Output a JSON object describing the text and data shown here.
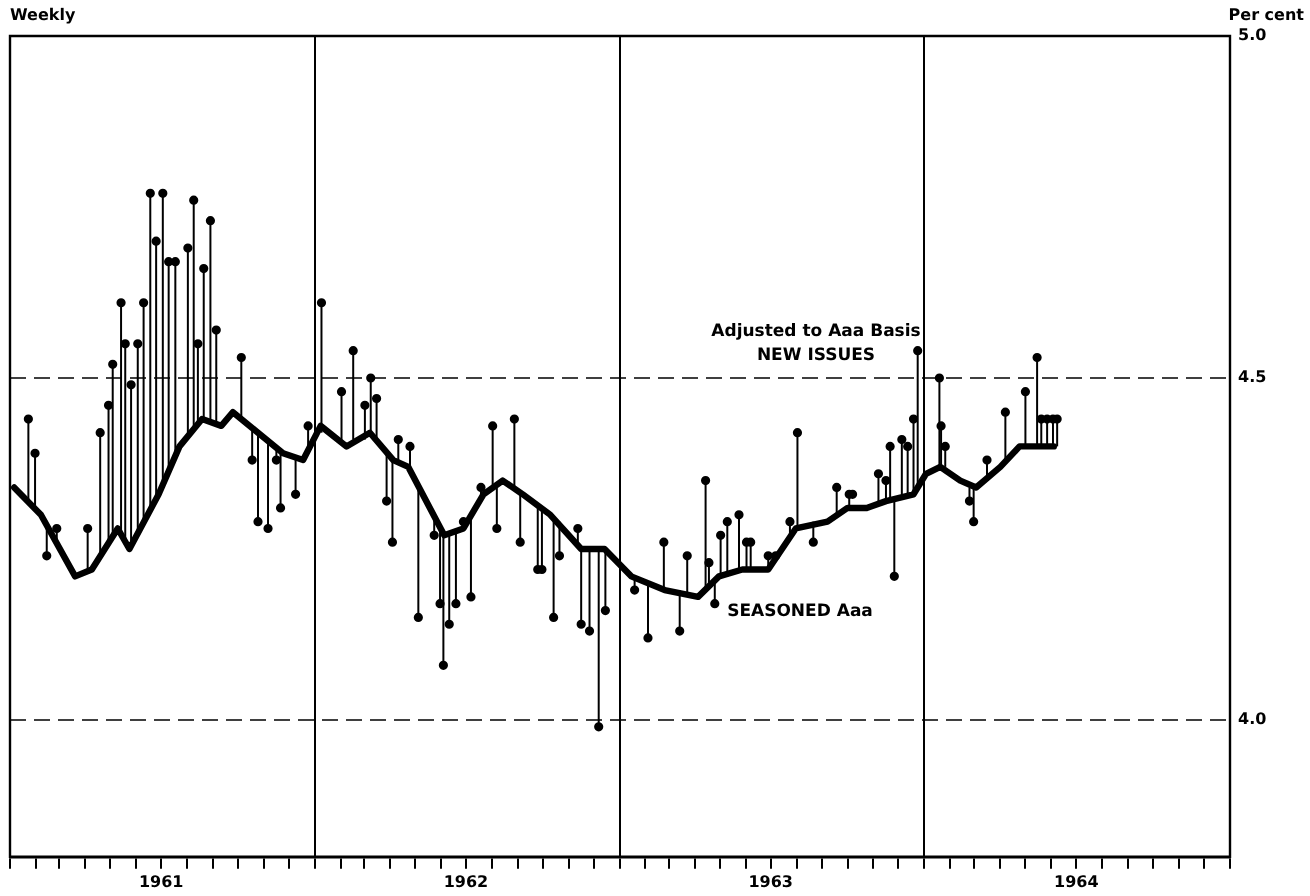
{
  "chart_data": {
    "type": "line",
    "subtitle": "Weekly",
    "ylabel": "Per cent",
    "annotations": [
      "Adjusted to Aaa Basis"
    ],
    "xlim": [
      "1961-01-01",
      "1965-01-01"
    ],
    "xticks": [
      {
        "value": "1961-01-01",
        "label": null
      },
      {
        "value": "1961-02-01",
        "label": null
      },
      {
        "value": "1961-03-01",
        "label": null
      },
      {
        "value": "1961-04-01",
        "label": null
      },
      {
        "value": "1961-05-01",
        "label": null
      },
      {
        "value": "1961-06-01",
        "label": null
      },
      {
        "value": "1961-07-01",
        "label": "1961"
      },
      {
        "value": "1961-08-01",
        "label": null
      },
      {
        "value": "1961-09-01",
        "label": null
      },
      {
        "value": "1961-10-01",
        "label": null
      },
      {
        "value": "1961-11-01",
        "label": null
      },
      {
        "value": "1961-12-01",
        "label": null
      },
      {
        "value": "1962-01-01",
        "label": null
      },
      {
        "value": "1962-02-01",
        "label": null
      },
      {
        "value": "1962-03-01",
        "label": null
      },
      {
        "value": "1962-04-01",
        "label": null
      },
      {
        "value": "1962-05-01",
        "label": null
      },
      {
        "value": "1962-06-01",
        "label": null
      },
      {
        "value": "1962-07-01",
        "label": "1962"
      },
      {
        "value": "1962-08-01",
        "label": null
      },
      {
        "value": "1962-09-01",
        "label": null
      },
      {
        "value": "1962-10-01",
        "label": null
      },
      {
        "value": "1962-11-01",
        "label": null
      },
      {
        "value": "1962-12-01",
        "label": null
      },
      {
        "value": "1963-01-01",
        "label": null
      },
      {
        "value": "1963-02-01",
        "label": null
      },
      {
        "value": "1963-03-01",
        "label": null
      },
      {
        "value": "1963-04-01",
        "label": null
      },
      {
        "value": "1963-05-01",
        "label": null
      },
      {
        "value": "1963-06-01",
        "label": null
      },
      {
        "value": "1963-07-01",
        "label": "1963"
      },
      {
        "value": "1963-08-01",
        "label": null
      },
      {
        "value": "1963-09-01",
        "label": null
      },
      {
        "value": "1963-10-01",
        "label": null
      },
      {
        "value": "1963-11-01",
        "label": null
      },
      {
        "value": "1963-12-01",
        "label": null
      },
      {
        "value": "1964-01-01",
        "label": null
      },
      {
        "value": "1964-02-01",
        "label": null
      },
      {
        "value": "1964-03-01",
        "label": null
      },
      {
        "value": "1964-04-01",
        "label": null
      },
      {
        "value": "1964-05-01",
        "label": null
      },
      {
        "value": "1964-06-01",
        "label": null
      },
      {
        "value": "1964-07-01",
        "label": "1964"
      },
      {
        "value": "1964-08-01",
        "label": null
      },
      {
        "value": "1964-09-01",
        "label": null
      },
      {
        "value": "1964-10-01",
        "label": null
      },
      {
        "value": "1964-11-01",
        "label": null
      },
      {
        "value": "1964-12-01",
        "label": null
      },
      {
        "value": "1965-01-01",
        "label": null
      }
    ],
    "ylim": [
      3.8,
      5.0
    ],
    "yticks": [
      {
        "value": 4.0,
        "label": "4.0"
      },
      {
        "value": 4.5,
        "label": "4.5"
      },
      {
        "value": 5.0,
        "label": "5.0"
      }
    ],
    "grid": true,
    "legend": false,
    "series": [
      {
        "name": "SEASONED Aaa",
        "color": "#000000",
        "marker": "none",
        "line_style": "solid",
        "x": [
          "1961-01-06",
          "1961-02-07",
          "1961-03-20",
          "1961-04-09",
          "1961-05-10",
          "1961-05-24",
          "1961-06-28",
          "1961-07-23",
          "1961-08-19",
          "1961-09-11",
          "1961-09-25",
          "1961-10-25",
          "1961-11-24",
          "1961-12-18",
          "1962-01-08",
          "1962-02-08",
          "1962-03-08",
          "1962-04-05",
          "1962-04-23",
          "1962-06-05",
          "1962-06-28",
          "1962-07-22",
          "1962-08-14",
          "1962-09-07",
          "1962-10-10",
          "1962-11-16",
          "1962-12-14",
          "1963-01-15",
          "1963-02-24",
          "1963-04-05",
          "1963-04-30",
          "1963-05-28",
          "1963-06-28",
          "1963-07-31",
          "1963-09-07",
          "1963-10-01",
          "1963-10-24",
          "1963-11-16",
          "1963-12-19",
          "1964-01-03",
          "1964-01-20",
          "1964-02-13",
          "1964-03-03",
          "1964-04-01",
          "1964-04-24",
          "1964-06-04"
        ],
        "values": [
          4.34,
          4.3,
          4.21,
          4.22,
          4.28,
          4.25,
          4.33,
          4.4,
          4.44,
          4.43,
          4.45,
          4.42,
          4.39,
          4.38,
          4.43,
          4.4,
          4.42,
          4.38,
          4.37,
          4.27,
          4.28,
          4.33,
          4.35,
          4.33,
          4.3,
          4.25,
          4.25,
          4.21,
          4.19,
          4.18,
          4.21,
          4.22,
          4.22,
          4.28,
          4.29,
          4.31,
          4.31,
          4.32,
          4.33,
          4.36,
          4.37,
          4.35,
          4.34,
          4.37,
          4.4,
          4.4
        ]
      },
      {
        "name": "NEW ISSUES",
        "type": "scatter",
        "color": "#000000",
        "marker": "circle",
        "errors": [
          [
            4.32,
            4.44
          ],
          [
            4.31,
            4.39
          ],
          [
            4.24,
            4.28
          ],
          [
            4.26,
            4.28
          ],
          [
            4.22,
            4.28
          ],
          [
            4.24,
            4.42
          ],
          [
            4.26,
            4.46
          ],
          [
            4.27,
            4.52
          ],
          [
            4.27,
            4.61
          ],
          [
            4.26,
            4.55
          ],
          [
            4.25,
            4.49
          ],
          [
            4.27,
            4.55
          ],
          [
            4.29,
            4.61
          ],
          [
            4.31,
            4.77
          ],
          [
            4.32,
            4.7
          ],
          [
            4.34,
            4.77
          ],
          [
            4.36,
            4.67
          ],
          [
            4.39,
            4.67
          ],
          [
            4.41,
            4.69
          ],
          [
            4.43,
            4.76
          ],
          [
            4.43,
            4.55
          ],
          [
            4.44,
            4.66
          ],
          [
            4.44,
            4.73
          ],
          [
            4.43,
            4.57
          ],
          [
            4.44,
            4.53
          ],
          [
            4.38,
            4.43
          ],
          [
            4.29,
            4.42
          ],
          [
            4.28,
            4.41
          ],
          [
            4.38,
            4.4
          ],
          [
            4.31,
            4.39
          ],
          [
            4.33,
            4.38
          ],
          [
            4.39,
            4.43
          ],
          [
            4.42,
            4.61
          ],
          [
            4.41,
            4.48
          ],
          [
            4.41,
            4.54
          ],
          [
            4.41,
            4.46
          ],
          [
            4.42,
            4.5
          ],
          [
            4.41,
            4.47
          ],
          [
            4.32,
            4.39
          ],
          [
            4.26,
            4.38
          ],
          [
            4.38,
            4.41
          ],
          [
            4.37,
            4.4
          ],
          [
            4.15,
            4.34
          ],
          [
            4.27,
            4.3
          ],
          [
            4.17,
            4.28
          ],
          [
            4.08,
            4.27
          ],
          [
            4.14,
            4.27
          ],
          [
            4.17,
            4.28
          ],
          [
            4.28,
            4.29
          ],
          [
            4.18,
            4.3
          ],
          [
            4.32,
            4.34
          ],
          [
            4.34,
            4.43
          ],
          [
            4.28,
            4.34
          ],
          [
            4.34,
            4.44
          ],
          [
            4.26,
            4.33
          ],
          [
            4.22,
            4.31
          ],
          [
            4.22,
            4.31
          ],
          [
            4.15,
            4.29
          ],
          [
            4.24,
            4.29
          ],
          [
            4.26,
            4.28
          ],
          [
            4.14,
            4.25
          ],
          [
            4.13,
            4.25
          ],
          [
            3.99,
            4.25
          ],
          [
            4.16,
            4.25
          ],
          [
            4.19,
            4.21
          ],
          [
            4.12,
            4.2
          ],
          [
            4.19,
            4.26
          ],
          [
            4.13,
            4.19
          ],
          [
            4.18,
            4.24
          ],
          [
            4.19,
            4.35
          ],
          [
            4.2,
            4.23
          ],
          [
            4.17,
            4.2
          ],
          [
            4.21,
            4.27
          ],
          [
            4.21,
            4.29
          ],
          [
            4.22,
            4.3
          ],
          [
            4.22,
            4.26
          ],
          [
            4.22,
            4.26
          ],
          [
            4.22,
            4.24
          ],
          null,
          [
            4.27,
            4.29
          ],
          [
            4.28,
            4.42
          ],
          [
            4.26,
            4.29
          ],
          [
            4.3,
            4.34
          ],
          [
            4.31,
            4.33
          ],
          null,
          [
            4.32,
            4.36
          ],
          [
            4.32,
            4.35
          ],
          [
            4.32,
            4.4
          ],
          [
            4.21,
            4.32
          ],
          [
            4.33,
            4.41
          ],
          [
            4.33,
            4.4
          ],
          [
            4.33,
            4.44
          ],
          [
            4.34,
            4.54
          ],
          [
            4.37,
            4.5
          ],
          [
            4.37,
            4.43
          ],
          [
            4.37,
            4.4
          ],
          [
            4.32,
            4.34
          ],
          [
            4.29,
            4.34
          ],
          [
            4.35,
            4.38
          ],
          [
            4.38,
            4.45
          ],
          [
            4.4,
            4.48
          ],
          [
            4.4,
            4.53
          ],
          [
            4.4,
            4.44
          ],
          [
            4.4,
            4.44
          ],
          [
            4.4,
            4.44
          ],
          [
            4.4,
            4.44
          ]
        ],
        "x": [
          "1961-01-23",
          "1961-01-31",
          "1961-02-14",
          "1961-02-26",
          "1961-04-04",
          "1961-04-19",
          "1961-04-29",
          "1961-05-04",
          "1961-05-14",
          "1961-05-19",
          "1961-05-26",
          "1961-06-03",
          "1961-06-10",
          "1961-06-18",
          "1961-06-25",
          "1961-07-03",
          "1961-07-10",
          "1961-07-18",
          "1961-08-02",
          "1961-08-09",
          "1961-08-14",
          "1961-08-21",
          "1961-08-29",
          "1961-09-05",
          "1961-10-05",
          "1961-10-18",
          "1961-10-25",
          "1961-11-06",
          "1961-11-16",
          "1961-11-21",
          "1961-12-09",
          "1961-12-24",
          "1962-01-09",
          "1962-02-02",
          "1962-02-16",
          "1962-03-02",
          "1962-03-09",
          "1962-03-16",
          "1962-03-28",
          "1962-04-04",
          "1962-04-11",
          "1962-04-25",
          "1962-05-05",
          "1962-05-24",
          "1962-05-31",
          "1962-06-04",
          "1962-06-11",
          "1962-06-19",
          "1962-06-28",
          "1962-07-07",
          "1962-07-19",
          "1962-08-02",
          "1962-08-07",
          "1962-08-28",
          "1962-09-04",
          "1962-09-25",
          "1962-09-30",
          "1962-10-14",
          "1962-10-21",
          "1962-11-12",
          "1962-11-16",
          "1962-11-26",
          "1962-12-07",
          "1962-12-15",
          "1963-01-19",
          "1963-02-04",
          "1963-02-23",
          "1963-03-14",
          "1963-03-23",
          "1963-04-14",
          "1963-04-18",
          "1963-04-25",
          "1963-05-02",
          "1963-05-10",
          "1963-05-24",
          "1963-06-02",
          "1963-06-07",
          "1963-06-28",
          "1963-07-07",
          "1963-07-24",
          "1963-08-02",
          "1963-08-21",
          "1963-09-18",
          "1963-10-03",
          "1963-10-07",
          "1963-11-07",
          "1963-11-16",
          "1963-11-21",
          "1963-11-26",
          "1963-12-05",
          "1963-12-12",
          "1963-12-19",
          "1963-12-24",
          "1964-01-19",
          "1964-01-21",
          "1964-01-26",
          "1964-02-24",
          "1964-02-29",
          "1964-03-16",
          "1964-04-07",
          "1964-05-01",
          "1964-05-15",
          "1964-05-20",
          "1964-05-27",
          "1964-06-03",
          "1964-06-08"
        ],
        "values": [
          4.44,
          4.39,
          4.24,
          4.28,
          4.28,
          4.42,
          4.46,
          4.52,
          4.61,
          4.55,
          4.49,
          4.55,
          4.61,
          4.77,
          4.7,
          4.77,
          4.67,
          4.67,
          4.69,
          4.76,
          4.55,
          4.66,
          4.73,
          4.57,
          4.53,
          4.38,
          4.29,
          4.28,
          4.38,
          4.31,
          4.33,
          4.43,
          4.61,
          4.48,
          4.54,
          4.46,
          4.5,
          4.47,
          4.32,
          4.26,
          4.41,
          4.4,
          4.15,
          4.27,
          4.17,
          4.08,
          4.14,
          4.17,
          4.29,
          4.18,
          4.34,
          4.43,
          4.28,
          4.44,
          4.26,
          4.22,
          4.22,
          4.15,
          4.24,
          4.28,
          4.14,
          4.13,
          3.99,
          4.16,
          4.19,
          4.12,
          4.26,
          4.13,
          4.24,
          4.35,
          4.23,
          4.17,
          4.27,
          4.29,
          4.3,
          4.26,
          4.26,
          4.24,
          4.24,
          4.29,
          4.42,
          4.26,
          4.34,
          4.33,
          4.33,
          4.36,
          4.35,
          4.4,
          4.21,
          4.41,
          4.4,
          4.44,
          4.54,
          4.5,
          4.43,
          4.4,
          4.32,
          4.29,
          4.38,
          4.45,
          4.48,
          4.53,
          4.44,
          4.44,
          4.44,
          4.44
        ]
      }
    ]
  }
}
